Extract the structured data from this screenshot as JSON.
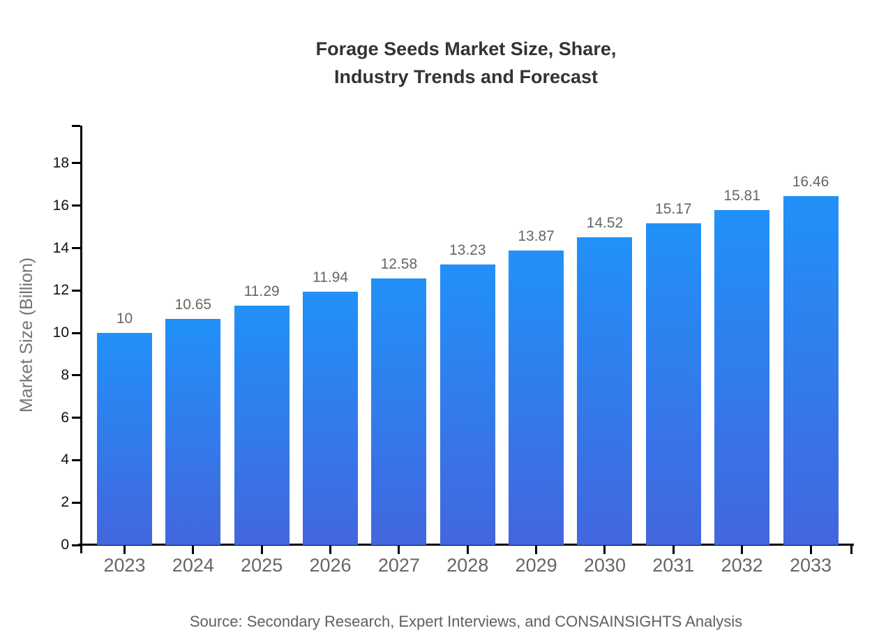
{
  "chart_data": {
    "type": "bar",
    "title": "Forage Seeds Market Size, Share, Industry Trends and Forecast",
    "title_lines": [
      "Forage Seeds Market Size, Share,",
      "Industry Trends and Forecast"
    ],
    "ylabel": "Market Size (Billion)",
    "xlabel": "",
    "categories": [
      "2023",
      "2024",
      "2025",
      "2026",
      "2027",
      "2028",
      "2029",
      "2030",
      "2031",
      "2032",
      "2033"
    ],
    "values": [
      10,
      10.65,
      11.29,
      11.94,
      12.58,
      13.23,
      13.87,
      14.52,
      15.17,
      15.81,
      16.46
    ],
    "value_labels": [
      "10",
      "10.65",
      "11.29",
      "11.94",
      "12.58",
      "13.23",
      "13.87",
      "14.52",
      "15.17",
      "15.81",
      "16.46"
    ],
    "yticks": [
      0,
      2,
      4,
      6,
      8,
      10,
      12,
      14,
      16,
      18
    ],
    "ylim": [
      0,
      19.8
    ],
    "grid": false,
    "legend": false,
    "bar_color_top": "#2191f8",
    "bar_color_bottom": "#4366de",
    "axis_color": "#000000",
    "title_color": "#333333",
    "label_color": "#666666",
    "source_note": "Source: Secondary Research, Expert Interviews, and CONSAINSIGHTS Analysis"
  }
}
